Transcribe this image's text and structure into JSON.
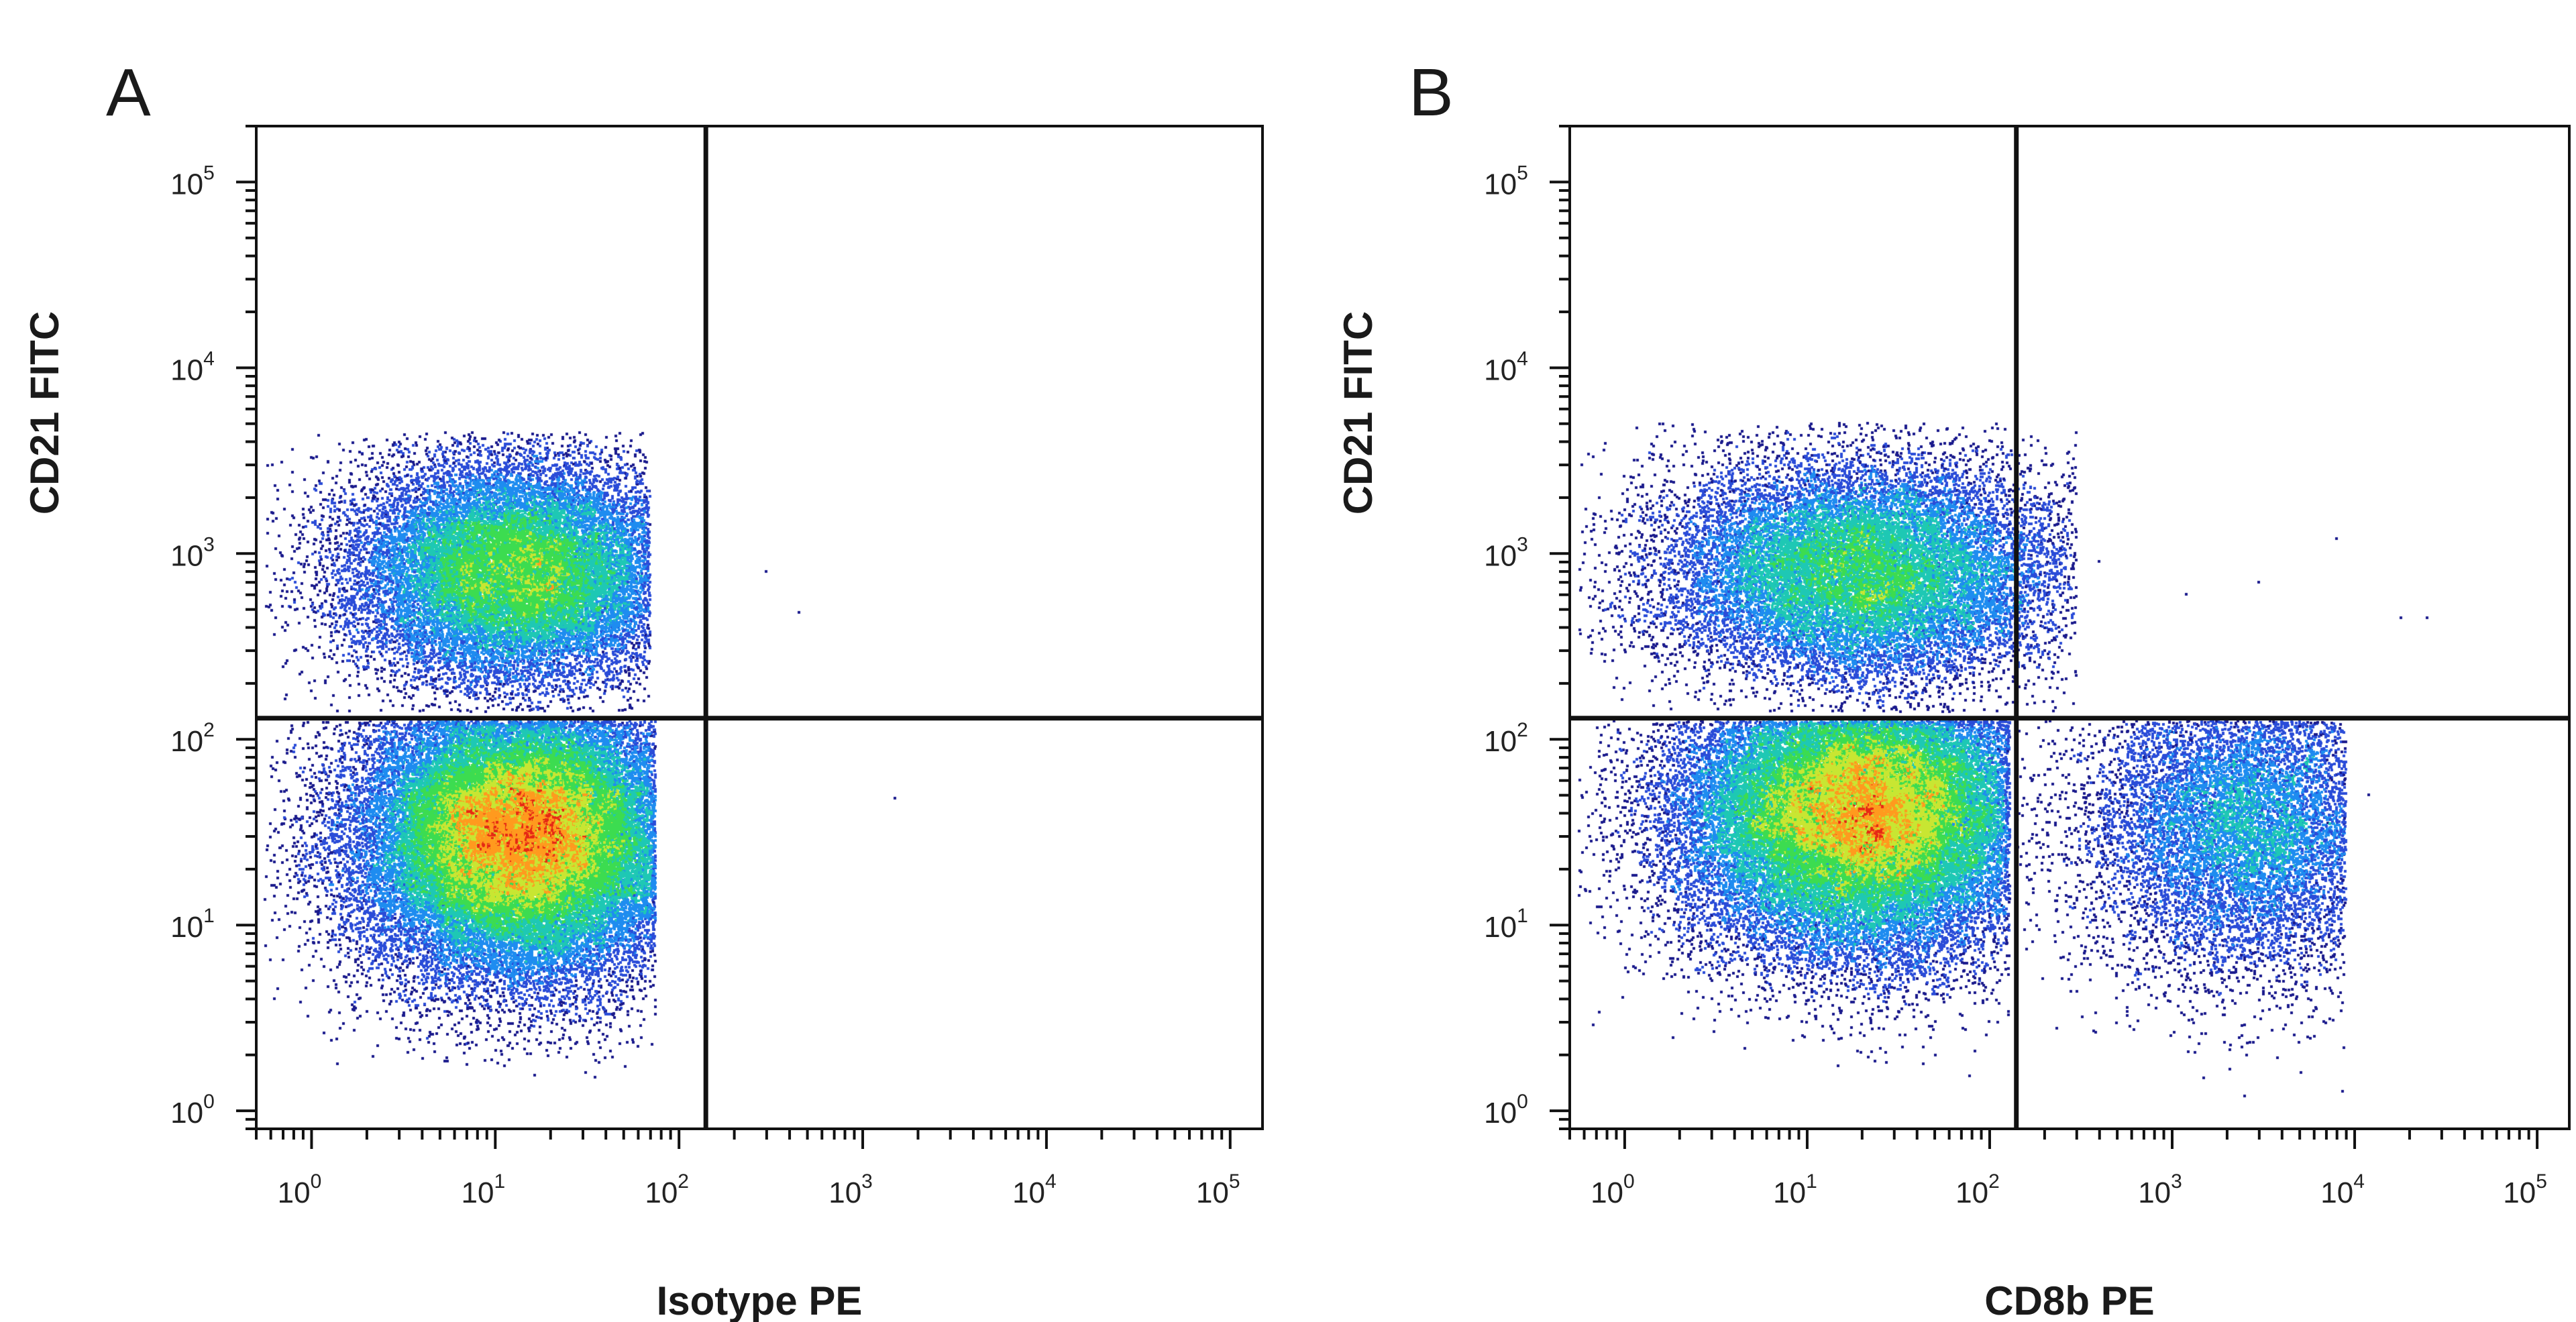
{
  "chart_data": [
    {
      "type": "scatter",
      "panel_label": "A",
      "xlabel": "Isotype PE",
      "ylabel": "CD21 FITC",
      "x_scale": "log",
      "y_scale": "log",
      "xlim": [
        0.5,
        150000
      ],
      "ylim": [
        0.8,
        200000
      ],
      "x_tick_labels": [
        {
          "base": "10",
          "exp": "0",
          "value": 1
        },
        {
          "base": "10",
          "exp": "1",
          "value": 10
        },
        {
          "base": "10",
          "exp": "2",
          "value": 100
        },
        {
          "base": "10",
          "exp": "3",
          "value": 1000
        },
        {
          "base": "10",
          "exp": "4",
          "value": 10000
        },
        {
          "base": "10",
          "exp": "5",
          "value": 100000
        }
      ],
      "y_tick_labels": [
        {
          "base": "10",
          "exp": "0",
          "value": 1
        },
        {
          "base": "10",
          "exp": "1",
          "value": 10
        },
        {
          "base": "10",
          "exp": "2",
          "value": 100
        },
        {
          "base": "10",
          "exp": "3",
          "value": 1000
        },
        {
          "base": "10",
          "exp": "4",
          "value": 10000
        },
        {
          "base": "10",
          "exp": "5",
          "value": 100000
        }
      ],
      "quadrant_gate": {
        "x": 140,
        "y": 130
      },
      "density_colormap": [
        "#1a1a8c",
        "#2a4cd8",
        "#1e8cf0",
        "#1ec8b4",
        "#3cdc50",
        "#c8e632",
        "#ff9a1e",
        "#e62814"
      ],
      "populations": [
        {
          "x_center": 13,
          "y_center": 800,
          "x_spread_decades": 0.45,
          "y_spread_decades": 0.3,
          "x_max": 70,
          "y_min": 140,
          "y_max": 4500,
          "weight": 0.34
        },
        {
          "x_center": 14,
          "y_center": 30,
          "x_spread_decades": 0.45,
          "y_spread_decades": 0.38,
          "x_max": 75,
          "y_min": 1.5,
          "y_max": 125,
          "weight": 0.66
        }
      ],
      "outliers": [
        {
          "x": 300,
          "y": 800
        },
        {
          "x": 450,
          "y": 480
        },
        {
          "x": 1500,
          "y": 48
        }
      ]
    },
    {
      "type": "scatter",
      "panel_label": "B",
      "xlabel": "CD8b PE",
      "ylabel": "CD21 FITC",
      "x_scale": "log",
      "y_scale": "log",
      "xlim": [
        0.5,
        150000
      ],
      "ylim": [
        0.8,
        200000
      ],
      "x_tick_labels": [
        {
          "base": "10",
          "exp": "0",
          "value": 1
        },
        {
          "base": "10",
          "exp": "1",
          "value": 10
        },
        {
          "base": "10",
          "exp": "2",
          "value": 100
        },
        {
          "base": "10",
          "exp": "3",
          "value": 1000
        },
        {
          "base": "10",
          "exp": "4",
          "value": 10000
        },
        {
          "base": "10",
          "exp": "5",
          "value": 100000
        }
      ],
      "y_tick_labels": [
        {
          "base": "10",
          "exp": "0",
          "value": 1
        },
        {
          "base": "10",
          "exp": "1",
          "value": 10
        },
        {
          "base": "10",
          "exp": "2",
          "value": 100
        },
        {
          "base": "10",
          "exp": "3",
          "value": 1000
        },
        {
          "base": "10",
          "exp": "4",
          "value": 10000
        },
        {
          "base": "10",
          "exp": "5",
          "value": 100000
        }
      ],
      "quadrant_gate": {
        "x": 140,
        "y": 130
      },
      "density_colormap": [
        "#1a1a8c",
        "#2a4cd8",
        "#1e8cf0",
        "#1ec8b4",
        "#3cdc50",
        "#c8e632",
        "#ff9a1e",
        "#e62814"
      ],
      "populations": [
        {
          "x_center": 20,
          "y_center": 800,
          "x_spread_decades": 0.55,
          "y_spread_decades": 0.3,
          "x_max": 300,
          "y_min": 140,
          "y_max": 5000,
          "weight": 0.3
        },
        {
          "x_center": 20,
          "y_center": 40,
          "x_spread_decades": 0.5,
          "y_spread_decades": 0.38,
          "x_max": 130,
          "y_min": 1.5,
          "y_max": 125,
          "weight": 0.55
        },
        {
          "x_center": 2500,
          "y_center": 35,
          "x_spread_decades": 0.45,
          "y_spread_decades": 0.4,
          "x_min": 140,
          "x_max": 9000,
          "y_min": 1.2,
          "y_max": 125,
          "weight": 0.15
        }
      ],
      "outliers": [
        {
          "x": 400,
          "y": 900
        },
        {
          "x": 1200,
          "y": 600
        },
        {
          "x": 3000,
          "y": 700
        },
        {
          "x": 8000,
          "y": 1200
        },
        {
          "x": 18000,
          "y": 450
        },
        {
          "x": 25000,
          "y": 450
        },
        {
          "x": 1500,
          "y": 1.5
        },
        {
          "x": 2500,
          "y": 1.2
        },
        {
          "x": 12000,
          "y": 50
        }
      ]
    }
  ]
}
